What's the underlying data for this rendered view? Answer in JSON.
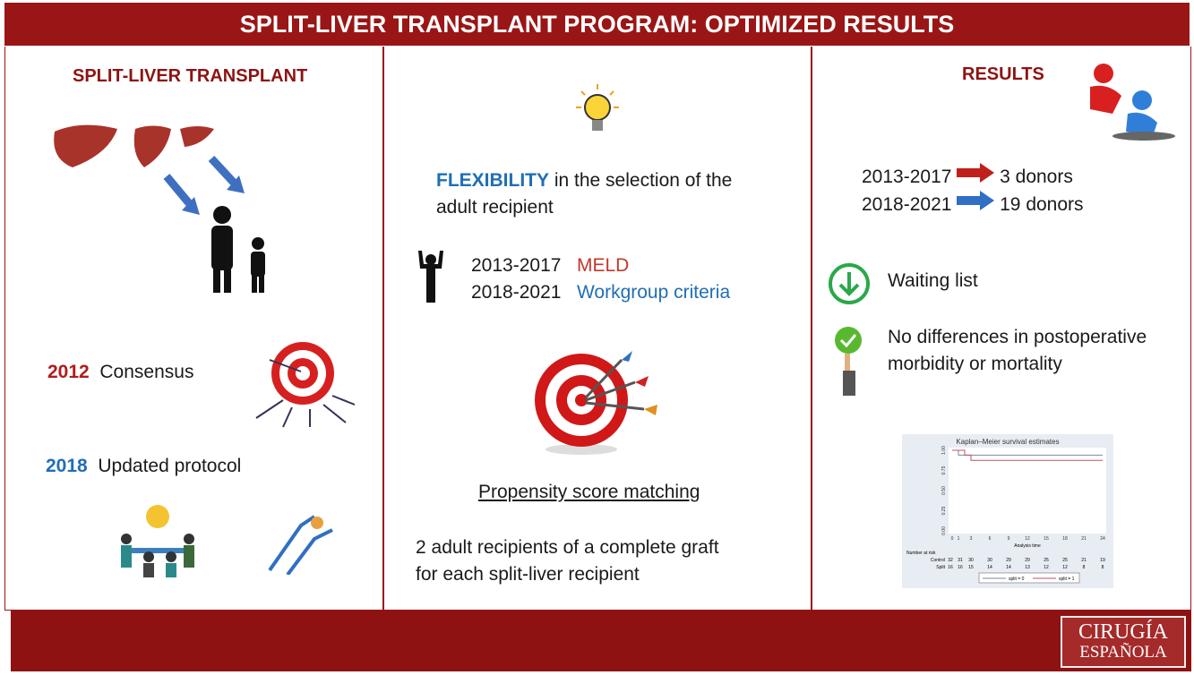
{
  "header": {
    "title": "SPLIT-LIVER TRANSPLANT PROGRAM: OPTIMIZED RESULTS"
  },
  "left": {
    "title": "SPLIT-LIVER TRANSPLANT",
    "events": [
      {
        "year": "2012",
        "label": "Consensus",
        "color": "#b01c1c"
      },
      {
        "year": "2018",
        "label": "Updated protocol",
        "color": "#1f6fb5"
      }
    ]
  },
  "middle": {
    "flex_word": "FLEXIBILITY",
    "flex_rest": "in the selection of the",
    "flex_line2": "adult recipient",
    "criteria": [
      {
        "period": "2013-2017",
        "label": "MELD",
        "color": "#c0392b"
      },
      {
        "period": "2018-2021",
        "label": "Workgroup criteria",
        "color": "#1f6fb5"
      }
    ],
    "psm": "Propensity score matching",
    "recipients_line1": "2 adult recipients of a complete graft",
    "recipients_line2": "for each split-liver recipient"
  },
  "right": {
    "title": "RESULTS",
    "donors": [
      {
        "period": "2013-2017",
        "value": "3 donors",
        "arrow_color": "#c0201c"
      },
      {
        "period": "2018-2021",
        "value": "19 donors",
        "arrow_color": "#2f6fc4"
      }
    ],
    "waiting": "Waiting list",
    "nodiff_line1": "No differences in postoperative",
    "nodiff_line2": "morbidity or mortality"
  },
  "chart_data": {
    "type": "line",
    "title": "Kaplan–Meier survival estimates",
    "xlabel": "Analysis time",
    "ylim": [
      0,
      1
    ],
    "xlim": [
      0,
      24
    ],
    "xticks": [
      0,
      1,
      3,
      6,
      9,
      12,
      15,
      18,
      21,
      24
    ],
    "yticks": [
      "0.00",
      "0.25",
      "0.50",
      "0.75",
      "1.00"
    ],
    "series": [
      {
        "name": "split = 0",
        "color": "#7a8aa0",
        "steps": [
          [
            0,
            1
          ],
          [
            1,
            0.94
          ],
          [
            24,
            0.94
          ]
        ]
      },
      {
        "name": "split = 1",
        "color": "#c05060",
        "steps": [
          [
            0,
            1
          ],
          [
            2,
            0.94
          ],
          [
            3,
            0.875
          ],
          [
            24,
            0.875
          ]
        ]
      }
    ],
    "risk_table": {
      "title": "Number at risk",
      "times": [
        0,
        1,
        3,
        6,
        9,
        12,
        15,
        18,
        21,
        24
      ],
      "rows": [
        {
          "label": "Control",
          "values": [
            32,
            31,
            30,
            30,
            29,
            29,
            25,
            25,
            21,
            19
          ]
        },
        {
          "label": "Split",
          "values": [
            16,
            16,
            15,
            14,
            14,
            13,
            12,
            12,
            8,
            8
          ]
        }
      ]
    },
    "legend": "bottom"
  },
  "footer": {
    "logo_line1": "CIRUGÍA",
    "logo_line2": "ESPAÑOLA"
  }
}
